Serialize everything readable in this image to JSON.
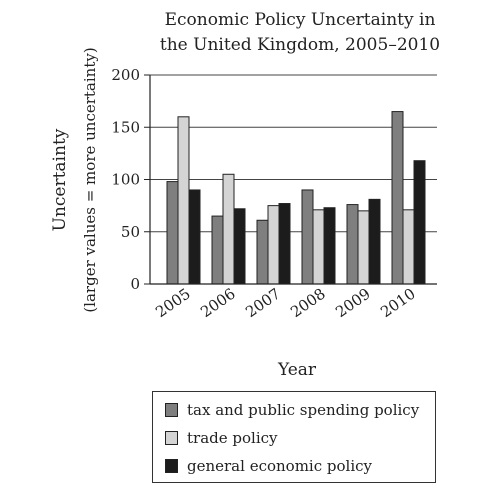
{
  "chart_data": {
    "type": "bar",
    "title_lines": [
      "Economic Policy Uncertainty in",
      "the United Kingdom, 2005–2010"
    ],
    "xlabel": "Year",
    "ylabel_lines": [
      "Uncertainty",
      "(larger values = more uncertainty)"
    ],
    "categories": [
      "2005",
      "2006",
      "2007",
      "2008",
      "2009",
      "2010"
    ],
    "ylim": [
      0,
      200
    ],
    "yticks": [
      "0",
      "50",
      "100",
      "150",
      "200"
    ],
    "grid": true,
    "legend_position": "bottom",
    "series": [
      {
        "name": "tax and public spending policy",
        "color": "#7f7f7f",
        "values": [
          98,
          65,
          61,
          90,
          76,
          165
        ]
      },
      {
        "name": "trade policy",
        "color": "#d4d4d4",
        "values": [
          160,
          105,
          75,
          71,
          70,
          71
        ]
      },
      {
        "name": "general economic policy",
        "color": "#1c1c1c",
        "values": [
          90,
          72,
          77,
          73,
          81,
          118
        ]
      }
    ]
  }
}
